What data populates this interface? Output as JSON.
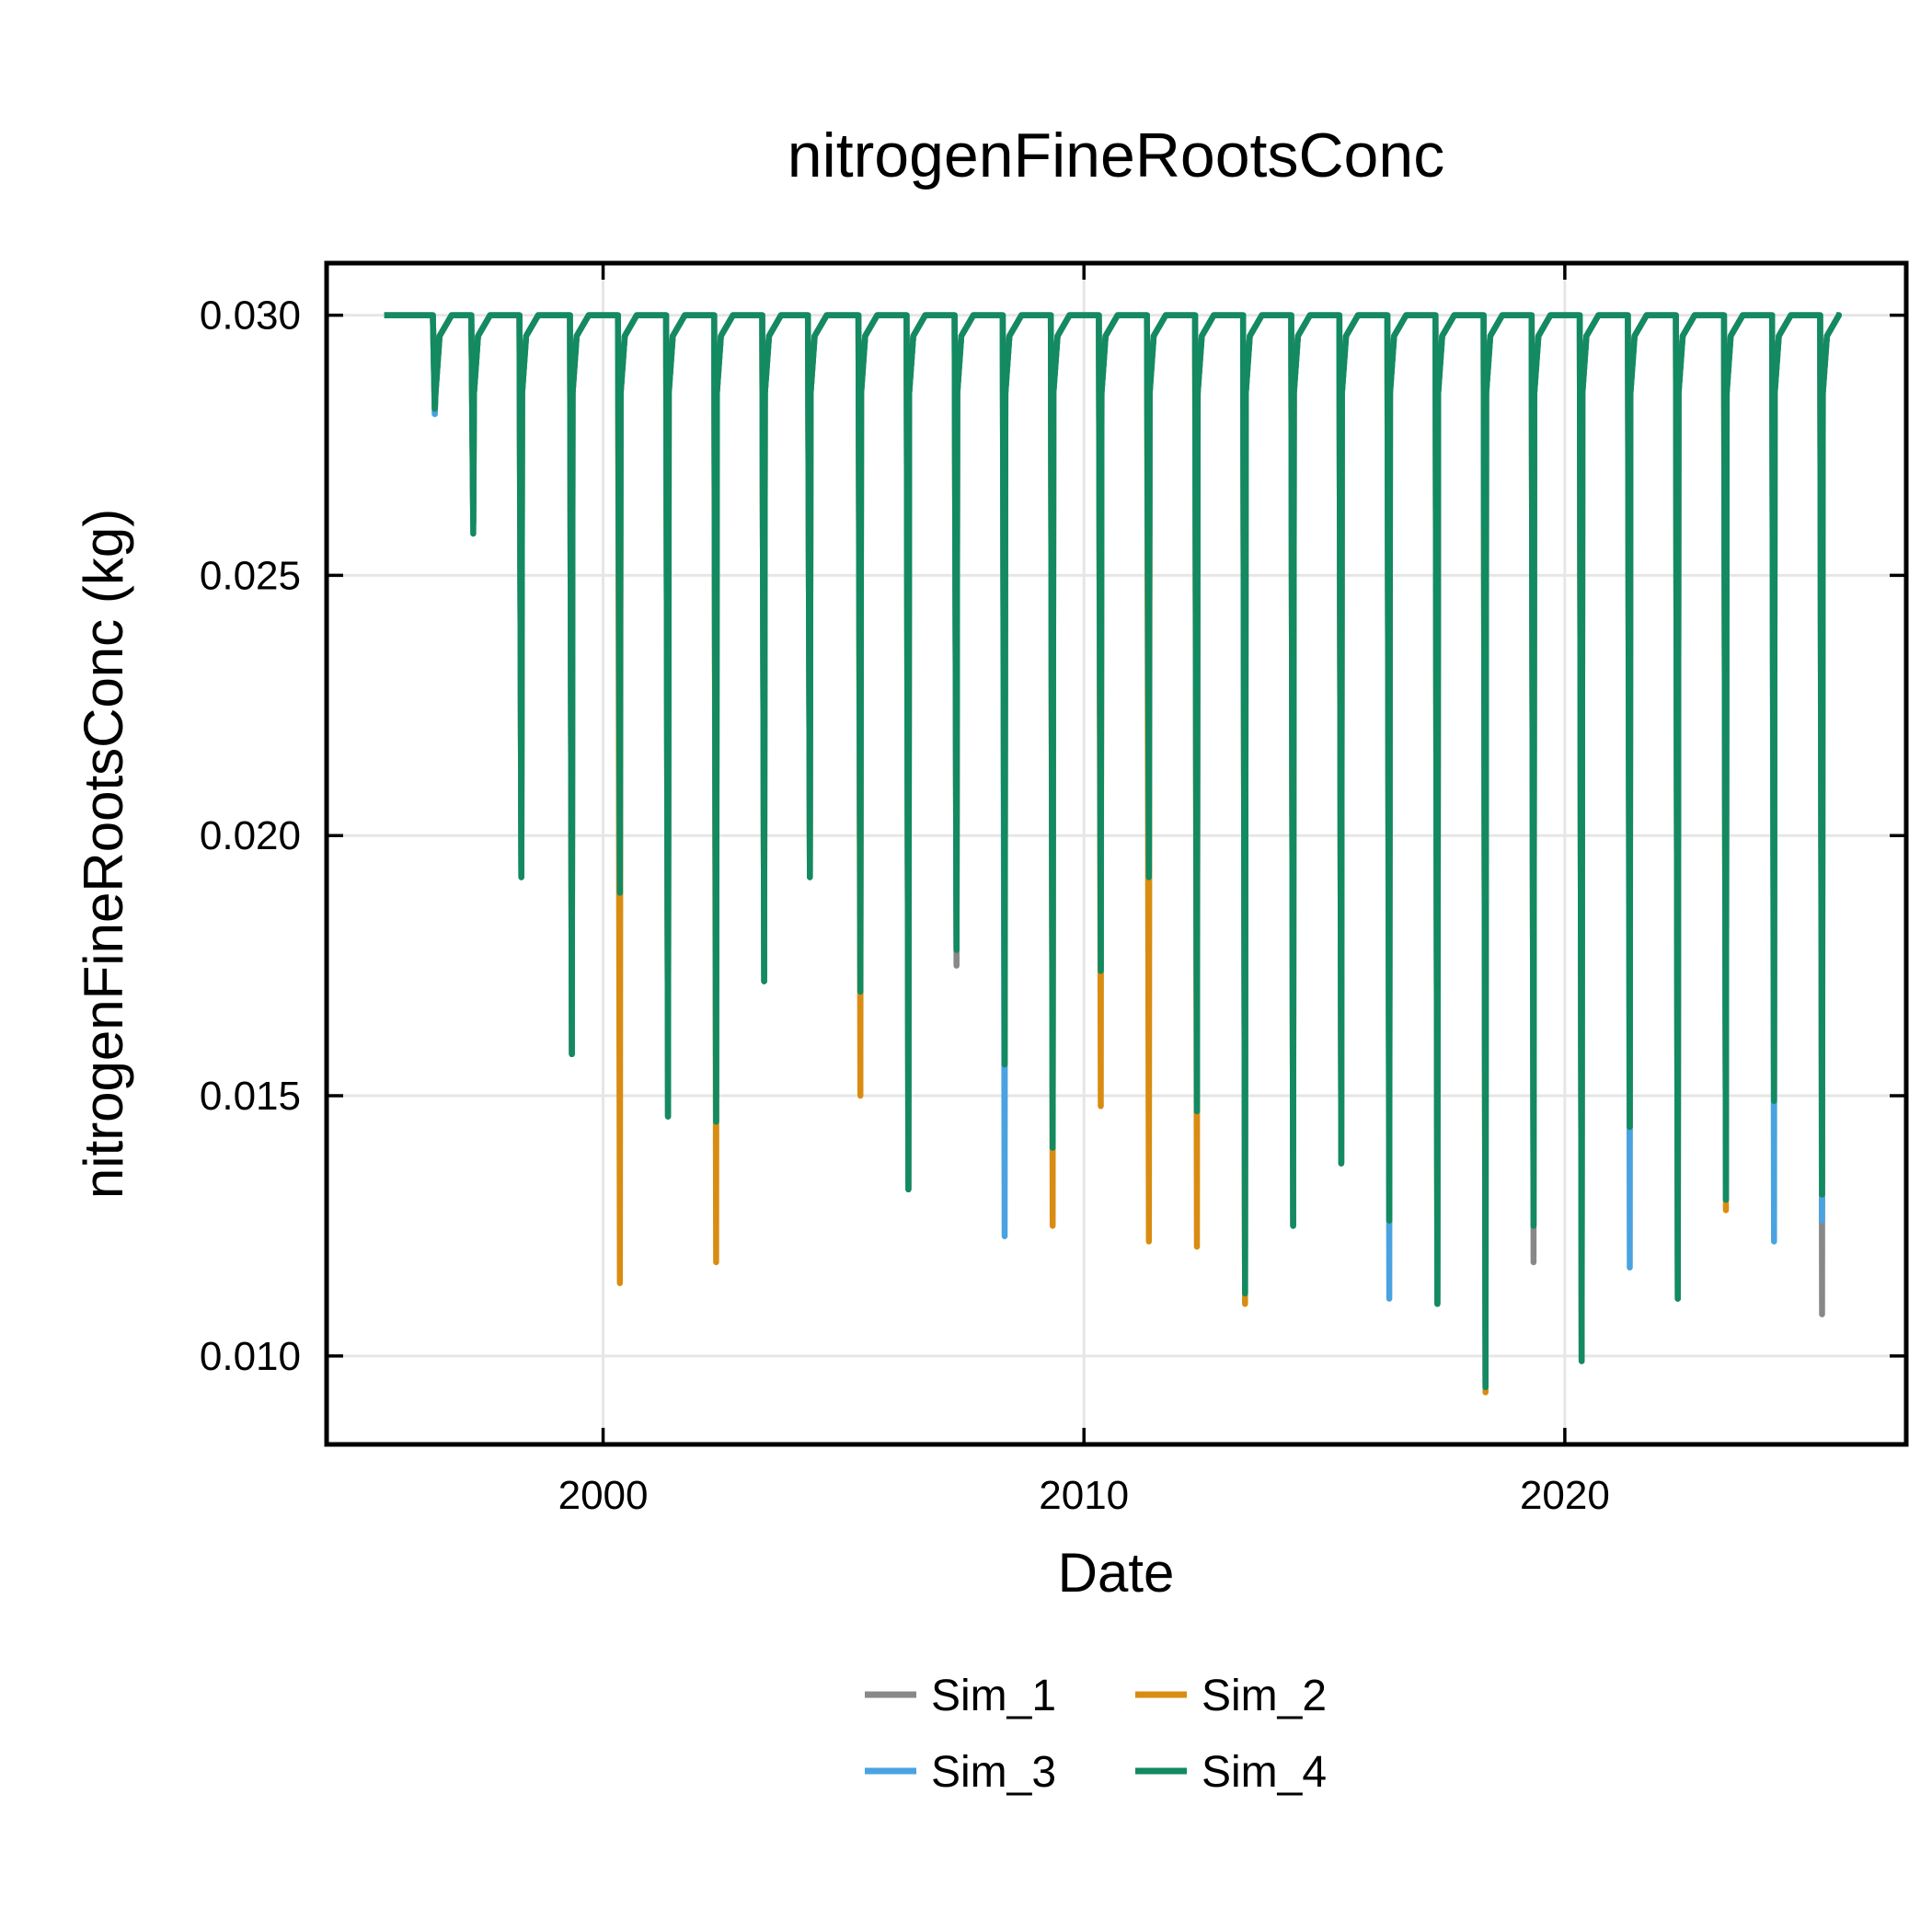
{
  "chart_data": {
    "type": "line",
    "title": "nitrogenFineRootsConc",
    "xlabel": "Date",
    "ylabel": "nitrogenFineRootsConc (kg)",
    "xlim": [
      1994.25,
      2027.1
    ],
    "ylim": [
      0.0083,
      0.031
    ],
    "x_ticks": [
      2000,
      2010,
      2020
    ],
    "x_tick_labels": [
      "2000",
      "2010",
      "2020"
    ],
    "y_ticks": [
      0.01,
      0.015,
      0.02,
      0.025,
      0.03
    ],
    "y_tick_labels": [
      "0.010",
      "0.015",
      "0.020",
      "0.025",
      "0.030"
    ],
    "grid": true,
    "legend_position": "bottom-center",
    "baseline_value": 0.03,
    "x_start": 1995.45,
    "x_end": 2025.65,
    "series": [
      {
        "name": "Sim_1",
        "color": "#888888",
        "dips": [
          [
            1996.5,
            0.0281
          ],
          [
            1997.3,
            0.026
          ],
          [
            1998.3,
            0.0192
          ],
          [
            1999.35,
            0.0158
          ],
          [
            2000.35,
            0.0189
          ],
          [
            2001.35,
            0.0146
          ],
          [
            2002.35,
            0.0145
          ],
          [
            2003.35,
            0.0172
          ],
          [
            2004.3,
            0.0192
          ],
          [
            2005.35,
            0.017
          ],
          [
            2006.35,
            0.0132
          ],
          [
            2007.35,
            0.0175
          ],
          [
            2008.35,
            0.0156
          ],
          [
            2009.35,
            0.014
          ],
          [
            2010.35,
            0.0174
          ],
          [
            2011.35,
            0.0192
          ],
          [
            2012.35,
            0.0147
          ],
          [
            2013.35,
            0.0112
          ],
          [
            2014.35,
            0.0125
          ],
          [
            2015.35,
            0.0137
          ],
          [
            2016.35,
            0.0126
          ],
          [
            2017.35,
            0.011
          ],
          [
            2018.35,
            0.0094
          ],
          [
            2019.35,
            0.0118
          ],
          [
            2020.35,
            0.0099
          ],
          [
            2021.35,
            0.0144
          ],
          [
            2022.35,
            0.0111
          ],
          [
            2023.35,
            0.013
          ],
          [
            2024.35,
            0.0149
          ],
          [
            2025.35,
            0.0108
          ]
        ]
      },
      {
        "name": "Sim_2",
        "color": "#d98c12",
        "dips": [
          [
            1996.5,
            0.0282
          ],
          [
            1997.3,
            0.026
          ],
          [
            1998.3,
            0.0192
          ],
          [
            1999.35,
            0.0158
          ],
          [
            2000.35,
            0.0114
          ],
          [
            2001.35,
            0.0146
          ],
          [
            2002.35,
            0.0118
          ],
          [
            2003.35,
            0.0172
          ],
          [
            2004.3,
            0.0192
          ],
          [
            2005.35,
            0.015
          ],
          [
            2006.35,
            0.0132
          ],
          [
            2007.35,
            0.0178
          ],
          [
            2008.35,
            0.0156
          ],
          [
            2009.35,
            0.0125
          ],
          [
            2010.35,
            0.0148
          ],
          [
            2011.35,
            0.0122
          ],
          [
            2012.35,
            0.0121
          ],
          [
            2013.35,
            0.011
          ],
          [
            2014.35,
            0.0125
          ],
          [
            2015.35,
            0.0137
          ],
          [
            2016.35,
            0.0126
          ],
          [
            2017.35,
            0.011
          ],
          [
            2018.35,
            0.0093
          ],
          [
            2019.35,
            0.0125
          ],
          [
            2020.35,
            0.0099
          ],
          [
            2021.35,
            0.0144
          ],
          [
            2022.35,
            0.0111
          ],
          [
            2023.35,
            0.0128
          ],
          [
            2024.35,
            0.0149
          ],
          [
            2025.35,
            0.0131
          ]
        ]
      },
      {
        "name": "Sim_3",
        "color": "#4aa3e0",
        "dips": [
          [
            1996.5,
            0.0281
          ],
          [
            1997.3,
            0.026
          ],
          [
            1998.3,
            0.0192
          ],
          [
            1999.35,
            0.0158
          ],
          [
            2000.35,
            0.0189
          ],
          [
            2001.35,
            0.0146
          ],
          [
            2002.35,
            0.0145
          ],
          [
            2003.35,
            0.0172
          ],
          [
            2004.3,
            0.0192
          ],
          [
            2005.35,
            0.017
          ],
          [
            2006.35,
            0.0132
          ],
          [
            2007.35,
            0.0178
          ],
          [
            2008.35,
            0.0123
          ],
          [
            2009.35,
            0.014
          ],
          [
            2010.35,
            0.0174
          ],
          [
            2011.35,
            0.0192
          ],
          [
            2012.35,
            0.0147
          ],
          [
            2013.35,
            0.0112
          ],
          [
            2014.35,
            0.0125
          ],
          [
            2015.35,
            0.0137
          ],
          [
            2016.35,
            0.0111
          ],
          [
            2017.35,
            0.011
          ],
          [
            2018.35,
            0.0094
          ],
          [
            2019.35,
            0.0125
          ],
          [
            2020.35,
            0.0099
          ],
          [
            2021.35,
            0.0117
          ],
          [
            2022.35,
            0.0111
          ],
          [
            2023.35,
            0.013
          ],
          [
            2024.35,
            0.0122
          ],
          [
            2025.35,
            0.0126
          ]
        ]
      },
      {
        "name": "Sim_4",
        "color": "#138a60",
        "dips": [
          [
            1996.5,
            0.0282
          ],
          [
            1997.3,
            0.0258
          ],
          [
            1998.3,
            0.0192
          ],
          [
            1999.35,
            0.0158
          ],
          [
            2000.35,
            0.0189
          ],
          [
            2001.35,
            0.0146
          ],
          [
            2002.35,
            0.0145
          ],
          [
            2003.35,
            0.0172
          ],
          [
            2004.3,
            0.0192
          ],
          [
            2005.35,
            0.017
          ],
          [
            2006.35,
            0.0132
          ],
          [
            2007.35,
            0.0178
          ],
          [
            2008.35,
            0.0156
          ],
          [
            2009.35,
            0.014
          ],
          [
            2010.35,
            0.0174
          ],
          [
            2011.35,
            0.0192
          ],
          [
            2012.35,
            0.0147
          ],
          [
            2013.35,
            0.0112
          ],
          [
            2014.35,
            0.0125
          ],
          [
            2015.35,
            0.0137
          ],
          [
            2016.35,
            0.0126
          ],
          [
            2017.35,
            0.011
          ],
          [
            2018.35,
            0.0094
          ],
          [
            2019.35,
            0.0125
          ],
          [
            2020.35,
            0.0099
          ],
          [
            2021.35,
            0.0144
          ],
          [
            2022.35,
            0.0111
          ],
          [
            2023.35,
            0.013
          ],
          [
            2024.35,
            0.0149
          ],
          [
            2025.35,
            0.0131
          ]
        ]
      }
    ]
  }
}
